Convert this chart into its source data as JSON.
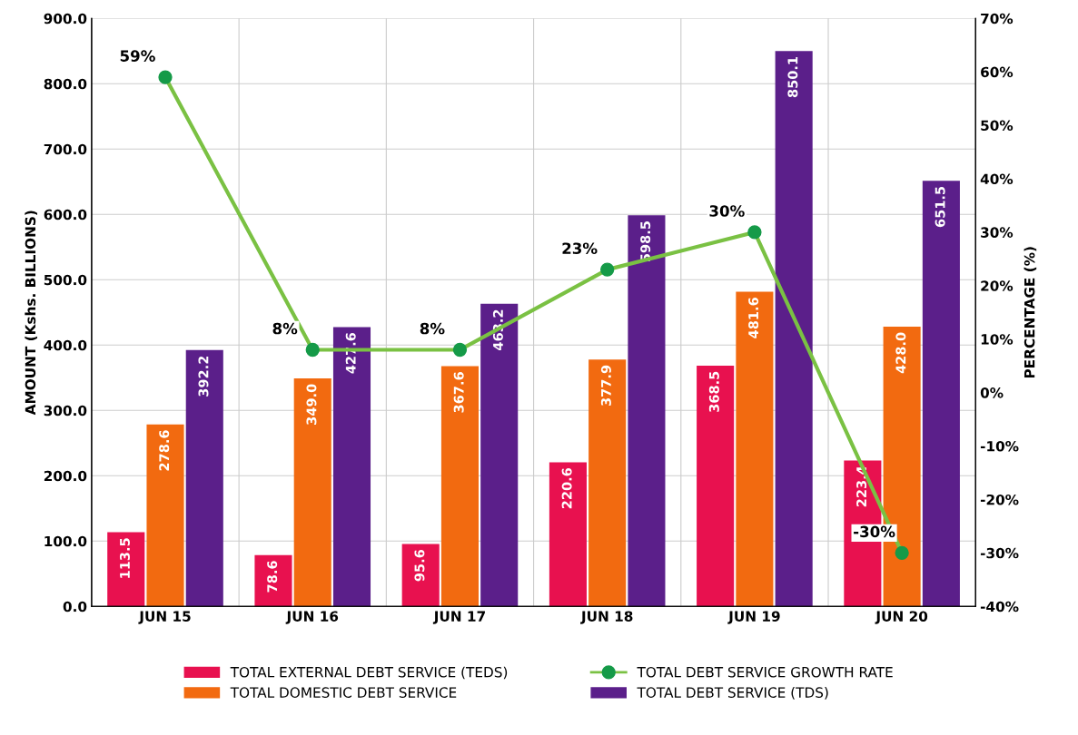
{
  "chart_data": {
    "type": "bar",
    "ylabel": "AMOUNT (Kshs. BILLIONS)",
    "y2label": "PERCENTAGE (%)",
    "categories": [
      "JUN 15",
      "JUN 16",
      "JUN 17",
      "JUN 18",
      "JUN 19",
      "JUN 20"
    ],
    "series": [
      {
        "name": "TOTAL EXTERNAL DEBT SERVICE (TEDS)",
        "color": "#e8114f",
        "values": [
          113.5,
          78.6,
          95.6,
          220.6,
          368.5,
          223.4
        ],
        "value_labels": [
          "113.5",
          "78.6",
          "95.6",
          "220.6",
          "368.5",
          "223.4"
        ]
      },
      {
        "name": "TOTAL DOMESTIC DEBT SERVICE",
        "color": "#f26a10",
        "values": [
          278.6,
          349.0,
          367.6,
          377.9,
          481.6,
          428.0
        ],
        "value_labels": [
          "278.6",
          "349.0",
          "367.6",
          "377.9",
          "481.6",
          "428.0"
        ]
      },
      {
        "name": "TOTAL DEBT SERVICE GROWTH RATE",
        "type": "line",
        "axis": "y2",
        "color": "#7ac143",
        "marker": "circle",
        "values": [
          59,
          8,
          8,
          23,
          30,
          -30
        ],
        "value_labels": [
          "59%",
          "8%",
          "8%",
          "23%",
          "30%",
          "-30%"
        ]
      },
      {
        "name": "TOTAL DEBT SERVICE (TDS)",
        "color": "#5b1f8a",
        "values": [
          392.2,
          427.6,
          463.2,
          598.5,
          850.1,
          651.5
        ],
        "value_labels": [
          "392.2",
          "427.6",
          "463.2",
          "598.5",
          "850.1",
          "651.5"
        ]
      }
    ],
    "data_labels": true,
    "ylim": [
      0,
      900
    ],
    "yticks": [
      {
        "value": 0,
        "label": "0.0"
      },
      {
        "value": 100,
        "label": "100.0"
      },
      {
        "value": 200,
        "label": "200.0"
      },
      {
        "value": 300,
        "label": "300.0"
      },
      {
        "value": 400,
        "label": "400.0"
      },
      {
        "value": 500,
        "label": "500.0"
      },
      {
        "value": 600,
        "label": "600.0"
      },
      {
        "value": 700,
        "label": "700.0"
      },
      {
        "value": 800,
        "label": "800.0"
      },
      {
        "value": 900,
        "label": "900.0"
      }
    ],
    "y2lim": [
      -40,
      70
    ],
    "y2ticks": [
      {
        "value": -40,
        "label": "-40%"
      },
      {
        "value": -30,
        "label": "-30%"
      },
      {
        "value": -20,
        "label": "-20%"
      },
      {
        "value": -10,
        "label": "-10%"
      },
      {
        "value": 0,
        "label": "0%"
      },
      {
        "value": 10,
        "label": "10%"
      },
      {
        "value": 20,
        "label": "20%"
      },
      {
        "value": 30,
        "label": "30%"
      },
      {
        "value": 40,
        "label": "40%"
      },
      {
        "value": 50,
        "label": "50%"
      },
      {
        "value": 60,
        "label": "60%"
      },
      {
        "value": 70,
        "label": "70%"
      }
    ],
    "grid": true,
    "legend": "bottom"
  }
}
